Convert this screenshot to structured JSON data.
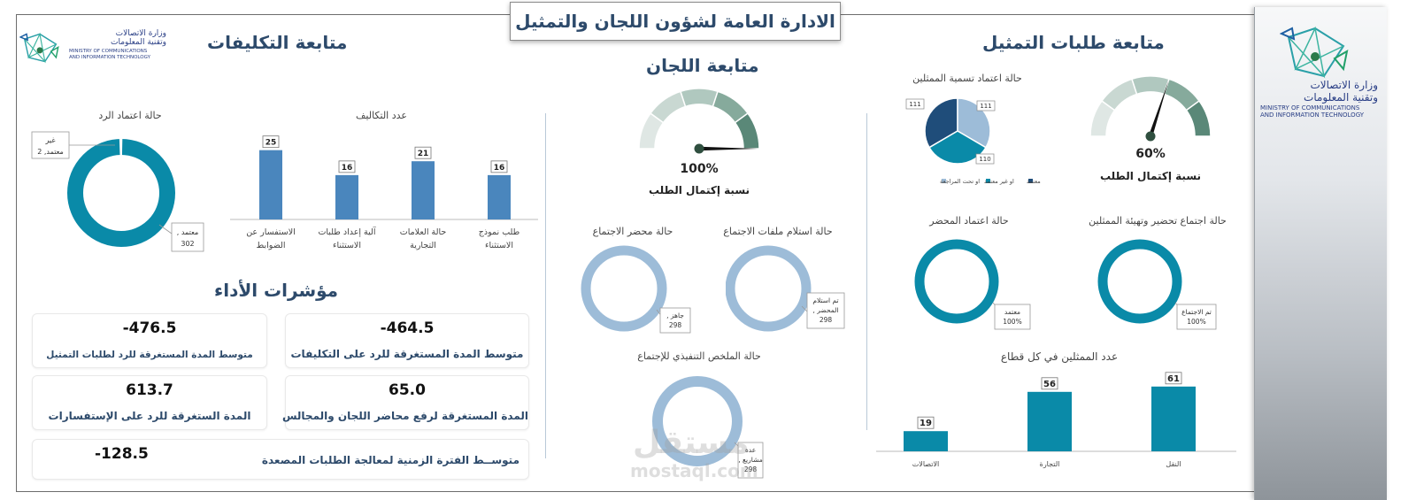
{
  "header": {
    "title": "الادارة العامة لشؤون اللجان والتمثيل"
  },
  "logo": {
    "line1": "وزارة الاتصالات",
    "line2": "وتقنية المعلومات",
    "en1": "MINISTRY OF COMMUNICATIONS",
    "en2": "AND INFORMATION TECHNOLOGY"
  },
  "sections": {
    "representation": "متابعة طلبات التمثيل",
    "committees": "متابعة اللجان",
    "assignments": "متابعة التكليفات",
    "kpis": "مؤشرات الأداء"
  },
  "colors": {
    "teal": "#0a8aa8",
    "steel": "#4a86bd",
    "lightblue": "#9dbcd8",
    "navy": "#1f4d7a",
    "darknavy": "#2d4a6b"
  },
  "chart_data": [
    {
      "id": "rep_gauge",
      "type": "gauge",
      "title": "نسبة إكتمال الطلب",
      "value": 60,
      "value_label": "60%",
      "range": [
        0,
        100
      ]
    },
    {
      "id": "rep_pie",
      "type": "pie",
      "title": "حالة اعتماد تسمية الممثلين",
      "categories": [
        "معتمد",
        "او غير معتمد",
        "او تحت المراجعة"
      ],
      "values": [
        111,
        110,
        111
      ],
      "colors": [
        "#1f4d7a",
        "#0a8aa8",
        "#9dbcd8"
      ],
      "data_labels": [
        "111",
        "110",
        "111"
      ]
    },
    {
      "id": "rep_donut_prep",
      "type": "pie",
      "title": "حالة اجتماع تحضير وتهيئة الممثلين",
      "categories": [
        "تم الاجتماع"
      ],
      "values": [
        100
      ],
      "data_label": "تم الاجتماع",
      "data_value": "100%"
    },
    {
      "id": "rep_donut_minutes",
      "type": "pie",
      "title": "حالة اعتماد المحضر",
      "categories": [
        "معتمد"
      ],
      "values": [
        100
      ],
      "data_label": "معتمد",
      "data_value": "100%"
    },
    {
      "id": "rep_bar",
      "type": "bar",
      "title": "عدد الممثلين في كل قطاع",
      "categories": [
        "النقل",
        "التجارة",
        "الاتصالات"
      ],
      "values": [
        61,
        56,
        19
      ],
      "ylim": [
        0,
        70
      ]
    },
    {
      "id": "com_gauge",
      "type": "gauge",
      "title": "نسبة إكتمال الطلب",
      "value": 100,
      "value_label": "100%",
      "range": [
        0,
        100
      ]
    },
    {
      "id": "com_donut_files",
      "type": "pie",
      "title": "حالة استلام ملفات الاجتماع",
      "categories": [
        "تم استلام المحضر"
      ],
      "values": [
        298
      ],
      "data_label_1": "تم استلام",
      "data_label_2": "المحضر ,",
      "data_value": "298"
    },
    {
      "id": "com_donut_minutes",
      "type": "pie",
      "title": "حالة محضر الاجتماع",
      "categories": [
        "جاهز"
      ],
      "values": [
        298
      ],
      "data_label": "جاهز ,",
      "data_value": "298"
    },
    {
      "id": "com_donut_summary",
      "type": "pie",
      "title": "حالة الملخص التنفيذي للإجتماع",
      "categories": [
        "عدة مشاريع"
      ],
      "values": [
        298
      ],
      "data_label_1": "عدة",
      "data_label_2": "مشاريع ,",
      "data_value": "298"
    },
    {
      "id": "asg_bar",
      "type": "bar",
      "title": "عدد التكاليف",
      "categories": [
        "طلب نموذج الاستثناء",
        "حالة العلامات التجارية",
        "آلية إعداد طلبات الاستثناء",
        "الاستفسار عن الضوابط"
      ],
      "category_lines": [
        [
          "طلب نموذج",
          "الاستثناء"
        ],
        [
          "حالة العلامات",
          "التجارية"
        ],
        [
          "آلية إعداد طلبات",
          "الاستثناء"
        ],
        [
          "الاستفسار عن",
          "الضوابط"
        ]
      ],
      "values": [
        16,
        21,
        16,
        25
      ],
      "ylim": [
        0,
        30
      ]
    },
    {
      "id": "asg_donut",
      "type": "pie",
      "title": "حالة اعتماد الرد",
      "categories": [
        "معتمد",
        "غير معتمد"
      ],
      "values": [
        302,
        2
      ],
      "label_a1": "معتمد ,",
      "label_a2": "302",
      "label_b1": "غير",
      "label_b2": "معتمد, 2"
    }
  ],
  "kpis": [
    {
      "value": "-464.5",
      "label": "متوسط المدة المستغرقة للرد على التكليفات"
    },
    {
      "value": "-476.5",
      "label": "متوسط المدة المستغرقة للرد لطلبات التمثيل"
    },
    {
      "value": "65.0",
      "label": "المدة المستغرقة لرفع محاضر اللجان والمجالس"
    },
    {
      "value": "613.7",
      "label": "المدة الستغرقة للرد على الإستفسارات"
    },
    {
      "value": "-128.5",
      "label": "متوســط الفترة الزمنية لمعالجة الطلبات المصعدة"
    }
  ],
  "watermark": {
    "text1": "مستقل",
    "text2": "mostaql.com"
  }
}
